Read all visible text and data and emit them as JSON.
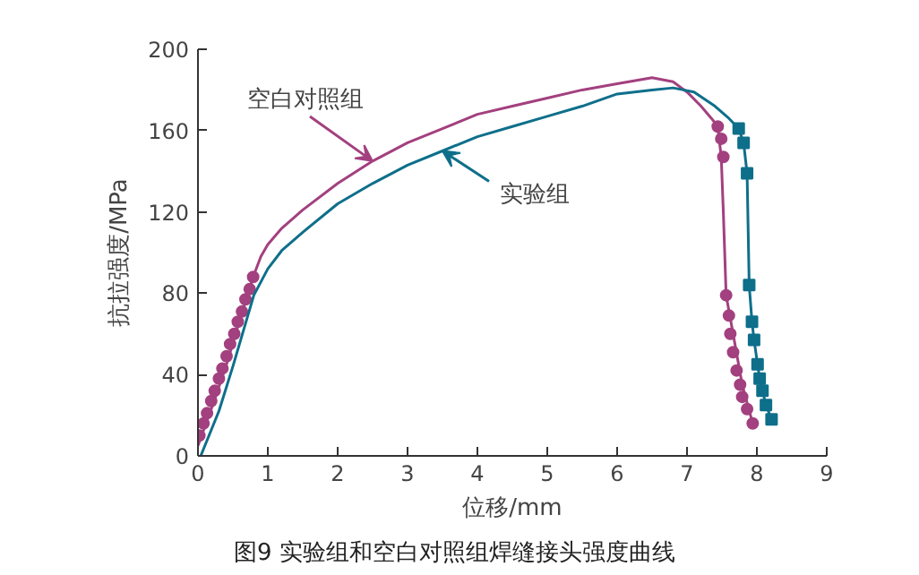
{
  "chart_data": {
    "type": "line",
    "xlabel": "位移/mm",
    "ylabel": "抗拉强度/MPa",
    "xlim": [
      0,
      9
    ],
    "ylim": [
      0,
      200
    ],
    "xticks": [
      0,
      1,
      2,
      3,
      4,
      5,
      6,
      7,
      8,
      9
    ],
    "yticks": [
      0,
      40,
      80,
      120,
      160,
      200
    ],
    "grid": false,
    "series": [
      {
        "name": "空白对照组",
        "color": "#a3407f",
        "marker": "none",
        "x": [
          0.0,
          0.2,
          0.4,
          0.6,
          0.79,
          0.9,
          1.0,
          1.2,
          1.5,
          2,
          2.5,
          3,
          3.5,
          4,
          4.5,
          5,
          5.5,
          6,
          6.5,
          6.8,
          7.0,
          7.2,
          7.35,
          7.44,
          7.49,
          7.52,
          7.56,
          7.66,
          7.79,
          7.94
        ],
        "values": [
          5,
          24,
          44,
          67,
          88,
          98,
          104,
          112,
          121,
          134,
          145,
          154,
          161,
          168,
          172,
          176,
          180,
          183,
          186,
          184,
          179,
          172,
          166,
          162,
          147,
          120,
          79,
          60,
          35,
          16
        ]
      },
      {
        "type": "scatter",
        "color": "#a3407f",
        "marker": "circle",
        "x": [
          0.02,
          0.08,
          0.13,
          0.19,
          0.24,
          0.3,
          0.35,
          0.41,
          0.46,
          0.52,
          0.57,
          0.63,
          0.68,
          0.74,
          0.79,
          7.44,
          7.49,
          7.52,
          7.56,
          7.6,
          7.62,
          7.66,
          7.71,
          7.76,
          7.79,
          7.86,
          7.94
        ],
        "values": [
          10,
          16,
          21,
          27,
          32,
          38,
          43,
          49,
          55,
          60,
          66,
          71,
          77,
          82,
          88,
          162,
          156,
          147,
          79,
          69,
          60,
          51,
          42,
          35,
          29,
          23,
          16
        ]
      },
      {
        "name": "实验组",
        "color": "#0e6f8a",
        "marker": "none",
        "x": [
          0.04,
          0.3,
          0.5,
          0.8,
          1.0,
          1.2,
          1.5,
          2,
          2.5,
          3,
          3.5,
          4,
          4.5,
          5,
          5.5,
          6,
          6.5,
          6.8,
          7.1,
          7.4,
          7.6,
          7.74,
          7.81,
          7.86,
          7.89,
          7.93,
          7.96,
          8.01,
          8.04,
          8.08,
          8.13,
          8.21
        ],
        "values": [
          0,
          22,
          44,
          79,
          92,
          101,
          110,
          124,
          134,
          143,
          150,
          157,
          162,
          167,
          172,
          178,
          180,
          181,
          179,
          172,
          166,
          161,
          154,
          139,
          84,
          66,
          57,
          45,
          38,
          32,
          25,
          18
        ]
      },
      {
        "type": "scatter",
        "color": "#0e6f8a",
        "marker": "square",
        "x": [
          7.74,
          7.81,
          7.86,
          7.89,
          7.93,
          7.96,
          8.01,
          8.04,
          8.08,
          8.13,
          8.21
        ],
        "values": [
          161,
          154,
          139,
          84,
          66,
          57,
          45,
          38,
          32,
          25,
          18
        ]
      }
    ],
    "annotations": [
      "图9 实验组和空白对照组焊缝接头强度曲线"
    ]
  }
}
